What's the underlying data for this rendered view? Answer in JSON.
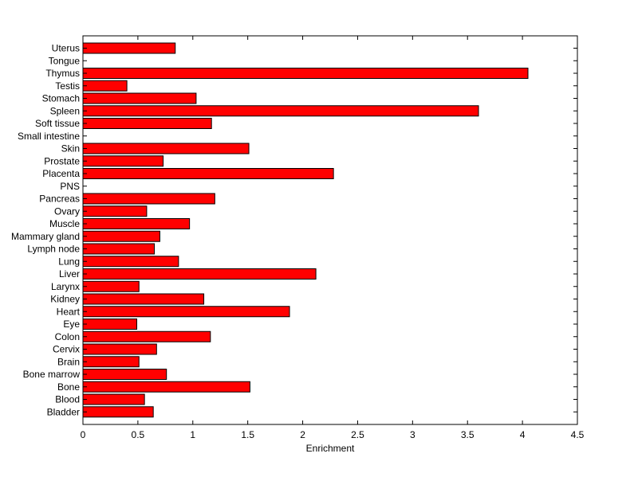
{
  "chart_data": {
    "type": "bar",
    "orientation": "horizontal",
    "title": "",
    "xlabel": "Enrichment",
    "ylabel": "",
    "xlim": [
      0,
      4.5
    ],
    "xticks": [
      "0",
      "0.5",
      "1",
      "1.5",
      "2",
      "2.5",
      "3",
      "3.5",
      "4",
      "4.5"
    ],
    "grid": false,
    "bar_color": "#ff0000",
    "categories": [
      "Uterus",
      "Tongue",
      "Thymus",
      "Testis",
      "Stomach",
      "Spleen",
      "Soft tissue",
      "Small intestine",
      "Skin",
      "Prostate",
      "Placenta",
      "PNS",
      "Pancreas",
      "Ovary",
      "Muscle",
      "Mammary gland",
      "Lymph node",
      "Lung",
      "Liver",
      "Larynx",
      "Kidney",
      "Heart",
      "Eye",
      "Colon",
      "Cervix",
      "Brain",
      "Bone marrow",
      "Bone",
      "Blood",
      "Bladder"
    ],
    "values": [
      0.84,
      0,
      4.05,
      0.4,
      1.03,
      3.6,
      1.17,
      0,
      1.51,
      0.73,
      2.28,
      0,
      1.2,
      0.58,
      0.97,
      0.7,
      0.65,
      0.87,
      2.12,
      0.51,
      1.1,
      1.88,
      0.49,
      1.16,
      0.67,
      0.51,
      0.76,
      1.52,
      0.56,
      0.64
    ]
  }
}
